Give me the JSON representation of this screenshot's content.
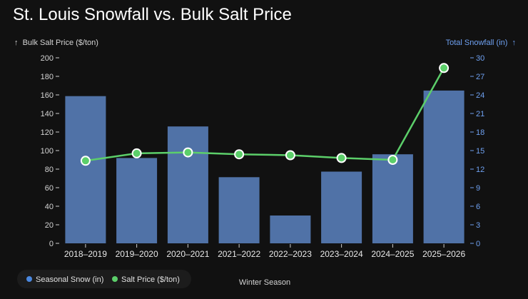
{
  "chart_data": {
    "type": "bar+line",
    "title": "St. Louis Snowfall vs. Bulk Salt Price",
    "xlabel": "Winter Season",
    "categories": [
      "2018–2019",
      "2019–2020",
      "2020–2021",
      "2021–2022",
      "2022–2023",
      "2023–2024",
      "2024–2025",
      "2025–2026"
    ],
    "left_axis": {
      "label": "Bulk Salt Price ($/ton)",
      "label_arrow": "↑",
      "range": [
        0,
        200
      ],
      "ticks": [
        0,
        20,
        40,
        60,
        80,
        100,
        120,
        140,
        160,
        180,
        200
      ]
    },
    "right_axis": {
      "label": "Total Snowfall (in)",
      "label_arrow": "↑",
      "range": [
        0,
        30
      ],
      "ticks": [
        0,
        3,
        6,
        9,
        12,
        15,
        18,
        21,
        24,
        27,
        30
      ]
    },
    "series": [
      {
        "name": "Seasonal Snow (in)",
        "kind": "bar",
        "axis": "right",
        "color": "#5072a7",
        "legend_color": "#4a88e0",
        "values": [
          23.8,
          13.8,
          18.9,
          10.7,
          4.5,
          11.6,
          14.4,
          24.7
        ]
      },
      {
        "name": "Salt Price ($/ton)",
        "kind": "line",
        "axis": "left",
        "color": "#5ccf6a",
        "values": [
          89,
          97,
          98,
          96,
          95,
          92,
          90,
          189
        ]
      }
    ],
    "legend": "bottom-left",
    "colors": {
      "background": "#111111",
      "right_axis": "#6ea0f0",
      "text": "#e8e8e8"
    }
  }
}
